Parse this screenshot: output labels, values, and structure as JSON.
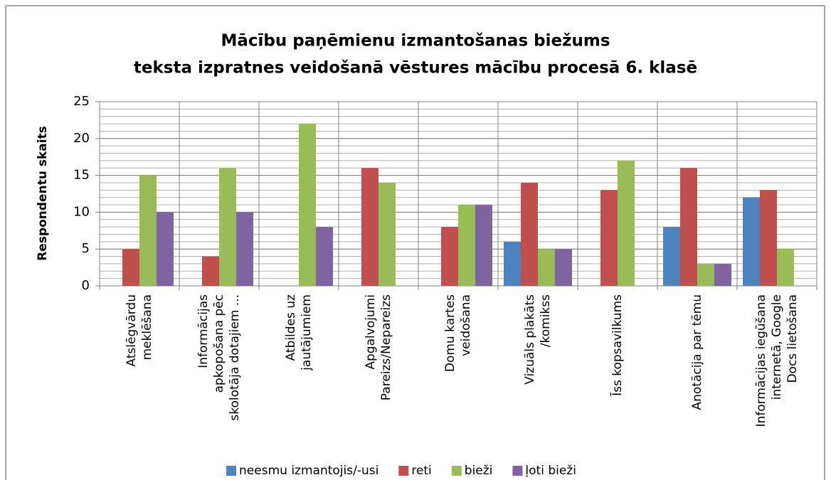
{
  "chart_data": {
    "type": "bar",
    "title": [
      "Mācību paņēmienu izmantošanas biežums",
      "teksta izpratnes veidošanā vēstures mācību procesā 6. klasē"
    ],
    "y_label": "Respondentu skaits",
    "categories": [
      [
        "Atslēgvārdu",
        "meklēšana"
      ],
      [
        "Informācijas",
        "apkopošana pēc",
        "skolotāja dotajiem ..."
      ],
      [
        "Atbildes uz",
        "jautājumiem"
      ],
      [
        "Apgalvojumi",
        "Pareizs/Nepareizs"
      ],
      [
        "Domu kartes",
        "veidošana"
      ],
      [
        "Vizuāls plakāts",
        "/komikss"
      ],
      [
        "Īss kopsavilkums"
      ],
      [
        "Anotācija par tēmu"
      ],
      [
        "Informācijas iegūšana",
        "internetā, Google",
        "Docs lietošana"
      ]
    ],
    "series": [
      {
        "name": "neesmu izmantojis/-usi",
        "color": "#4f81bd",
        "values": [
          0,
          0,
          0,
          0,
          0,
          6,
          0,
          8,
          12
        ]
      },
      {
        "name": "reti",
        "color": "#c0504d",
        "values": [
          5,
          4,
          0,
          16,
          8,
          14,
          13,
          16,
          13
        ]
      },
      {
        "name": "bieži",
        "color": "#9bbb59",
        "values": [
          15,
          16,
          22,
          14,
          11,
          5,
          17,
          3,
          5
        ]
      },
      {
        "name": "ļoti bieži",
        "color": "#8064a2",
        "values": [
          10,
          10,
          8,
          0,
          11,
          5,
          0,
          3,
          0
        ]
      }
    ],
    "ylim": [
      0,
      25
    ],
    "yticks": [
      0,
      5,
      10,
      15,
      20,
      25
    ],
    "minor_grid_step": 1,
    "grid": true,
    "legend": "bottom"
  }
}
